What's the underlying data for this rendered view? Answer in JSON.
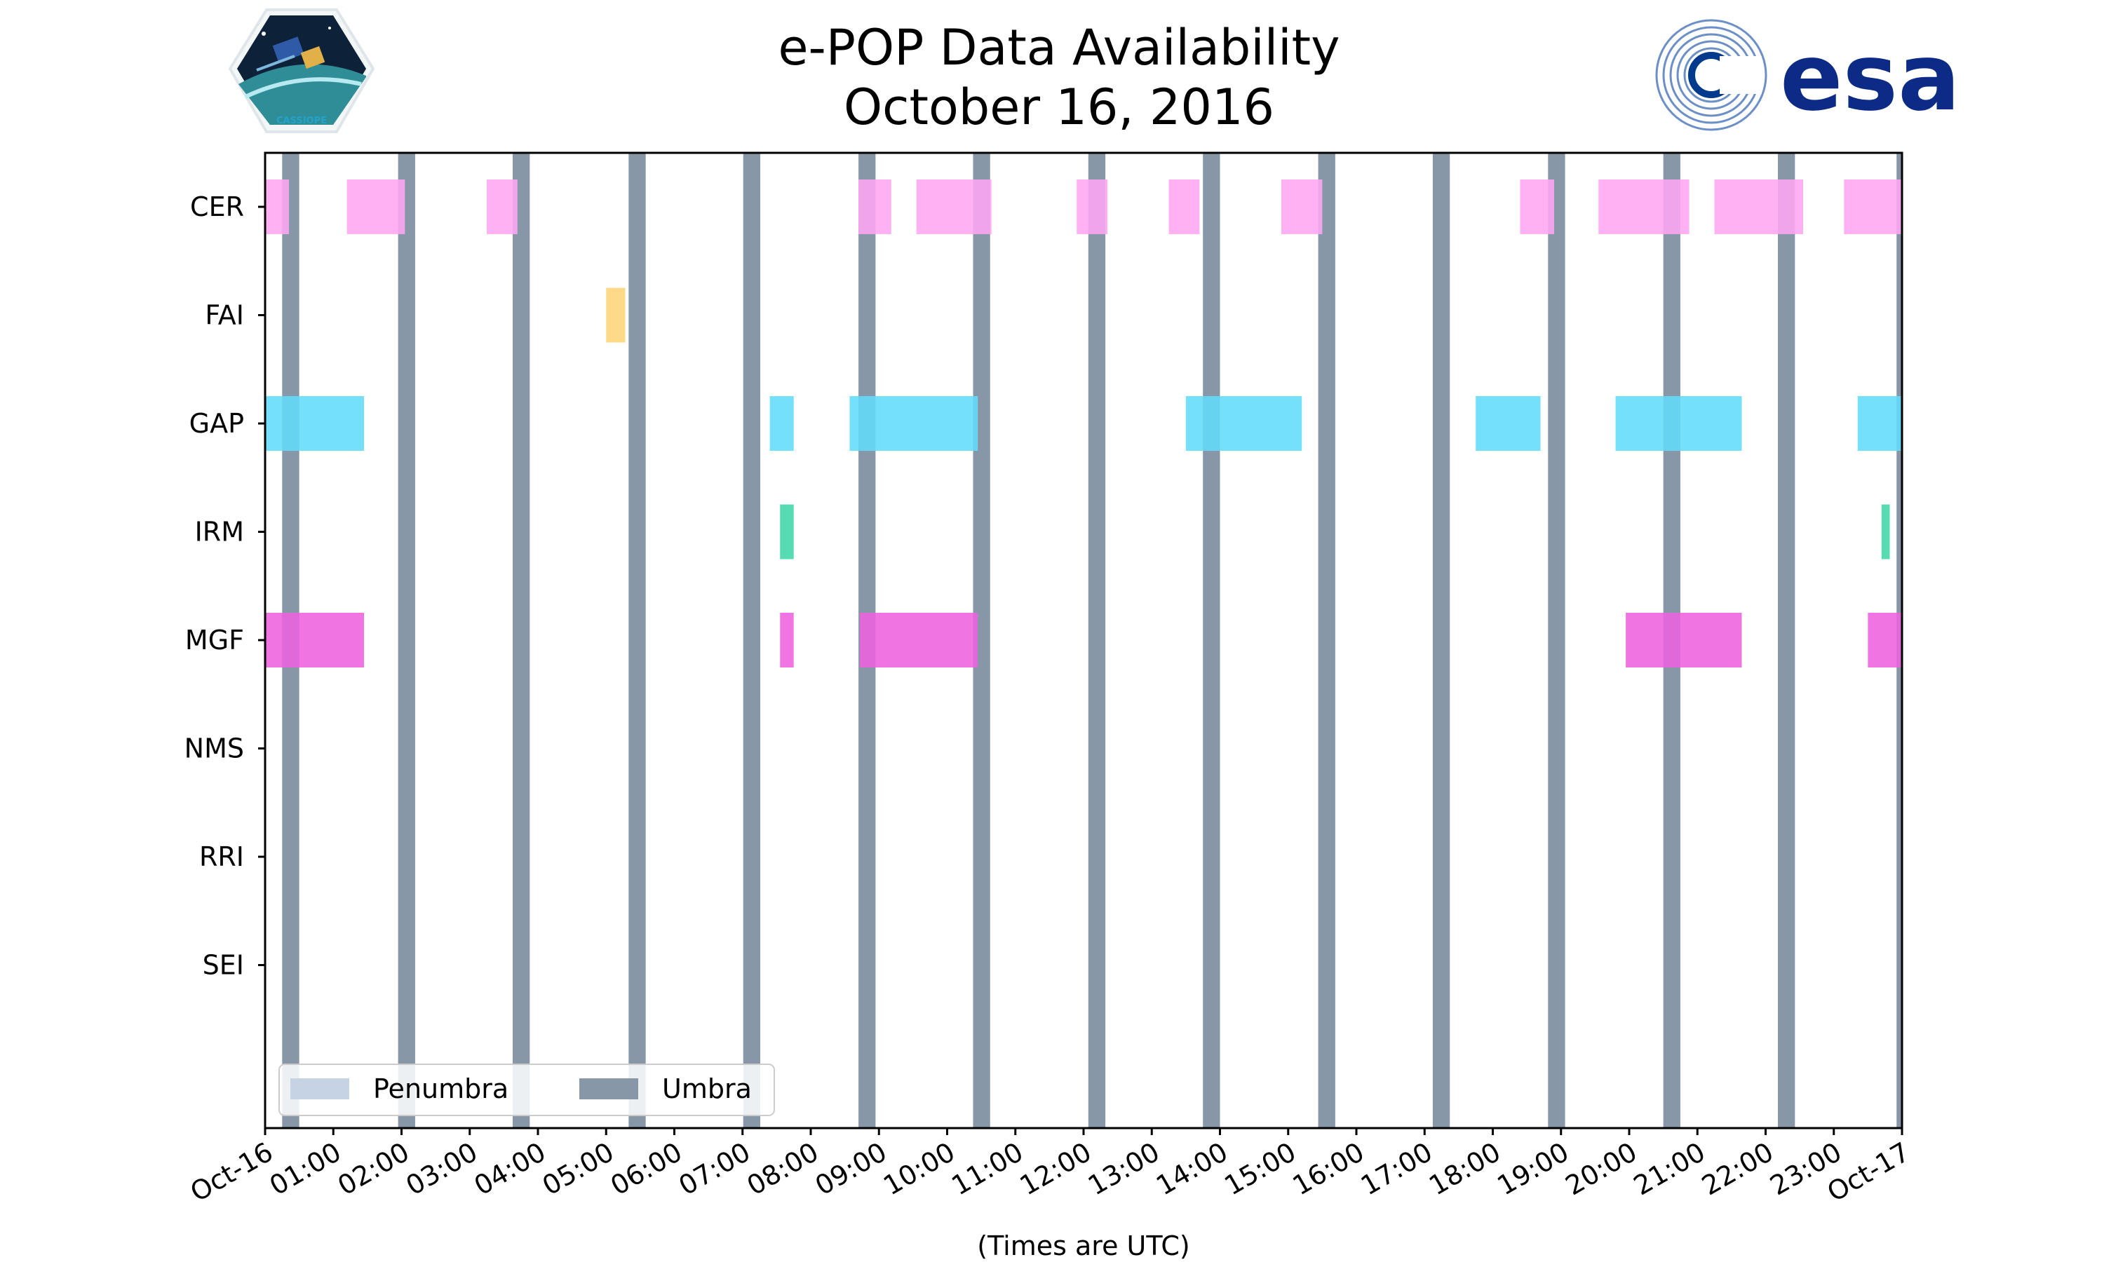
{
  "chart_data": {
    "type": "timeline",
    "title": [
      "e-POP Data Availability",
      "October 16, 2016"
    ],
    "xlabel": "(Times are UTC)",
    "x_range_hours": [
      0,
      24
    ],
    "x_tick_labels": [
      "Oct-16",
      "01:00",
      "02:00",
      "03:00",
      "04:00",
      "05:00",
      "06:00",
      "07:00",
      "08:00",
      "09:00",
      "10:00",
      "11:00",
      "12:00",
      "13:00",
      "14:00",
      "15:00",
      "16:00",
      "17:00",
      "18:00",
      "19:00",
      "20:00",
      "21:00",
      "22:00",
      "23:00",
      "Oct-17"
    ],
    "instruments": [
      "CER",
      "FAI",
      "GAP",
      "IRM",
      "MGF",
      "NMS",
      "RRI",
      "SEI"
    ],
    "colors": {
      "CER": "#ffa6f2",
      "FAI": "#fdd57a",
      "GAP": "#62dcf9",
      "IRM": "#3fd6a8",
      "MGF": "#ee62de",
      "umbra": "#8797a8",
      "penumbra": "#c5d3e4"
    },
    "umbra_intervals": [
      [
        0.25,
        0.5
      ],
      [
        1.95,
        2.2
      ],
      [
        3.63,
        3.88
      ],
      [
        5.33,
        5.58
      ],
      [
        7.01,
        7.26
      ],
      [
        8.7,
        8.95
      ],
      [
        10.38,
        10.63
      ],
      [
        12.07,
        12.32
      ],
      [
        13.75,
        14.0
      ],
      [
        15.44,
        15.69
      ],
      [
        17.12,
        17.37
      ],
      [
        18.81,
        19.06
      ],
      [
        20.5,
        20.75
      ],
      [
        22.18,
        22.43
      ],
      [
        23.92,
        24.0
      ]
    ],
    "series": [
      {
        "name": "CER",
        "intervals": [
          [
            0.0,
            0.35
          ],
          [
            1.2,
            2.05
          ],
          [
            3.25,
            3.7
          ],
          [
            8.7,
            9.18
          ],
          [
            9.55,
            10.65
          ],
          [
            11.9,
            12.35
          ],
          [
            13.25,
            13.7
          ],
          [
            14.9,
            15.5
          ],
          [
            18.4,
            18.9
          ],
          [
            19.55,
            20.88
          ],
          [
            21.25,
            22.55
          ],
          [
            23.15,
            24.0
          ]
        ]
      },
      {
        "name": "FAI",
        "intervals": [
          [
            5.0,
            5.28
          ]
        ]
      },
      {
        "name": "GAP",
        "intervals": [
          [
            0.0,
            1.45
          ],
          [
            7.4,
            7.75
          ],
          [
            8.57,
            10.45
          ],
          [
            13.5,
            15.2
          ],
          [
            17.75,
            18.7
          ],
          [
            19.8,
            21.65
          ],
          [
            23.35,
            24.0
          ]
        ]
      },
      {
        "name": "IRM",
        "intervals": [
          [
            7.55,
            7.75
          ],
          [
            23.7,
            23.82
          ]
        ]
      },
      {
        "name": "MGF",
        "intervals": [
          [
            0.0,
            1.45
          ],
          [
            7.55,
            7.75
          ],
          [
            8.72,
            10.45
          ],
          [
            19.95,
            21.65
          ],
          [
            23.5,
            24.0
          ]
        ]
      },
      {
        "name": "NMS",
        "intervals": []
      },
      {
        "name": "RRI",
        "intervals": []
      },
      {
        "name": "SEI",
        "intervals": []
      }
    ],
    "legend": [
      "Penumbra",
      "Umbra"
    ],
    "legend_position": "lower-left"
  },
  "logos": {
    "left_badge_text": "CASSIOPE",
    "right_wordmark": "esa"
  }
}
